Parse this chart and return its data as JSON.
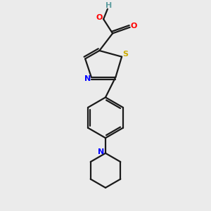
{
  "bg_color": "#ebebeb",
  "bond_color": "#1a1a1a",
  "colors": {
    "N": "#0000ff",
    "O": "#ff0000",
    "S": "#ccaa00",
    "H": "#5f9ea0",
    "C": "#1a1a1a"
  }
}
